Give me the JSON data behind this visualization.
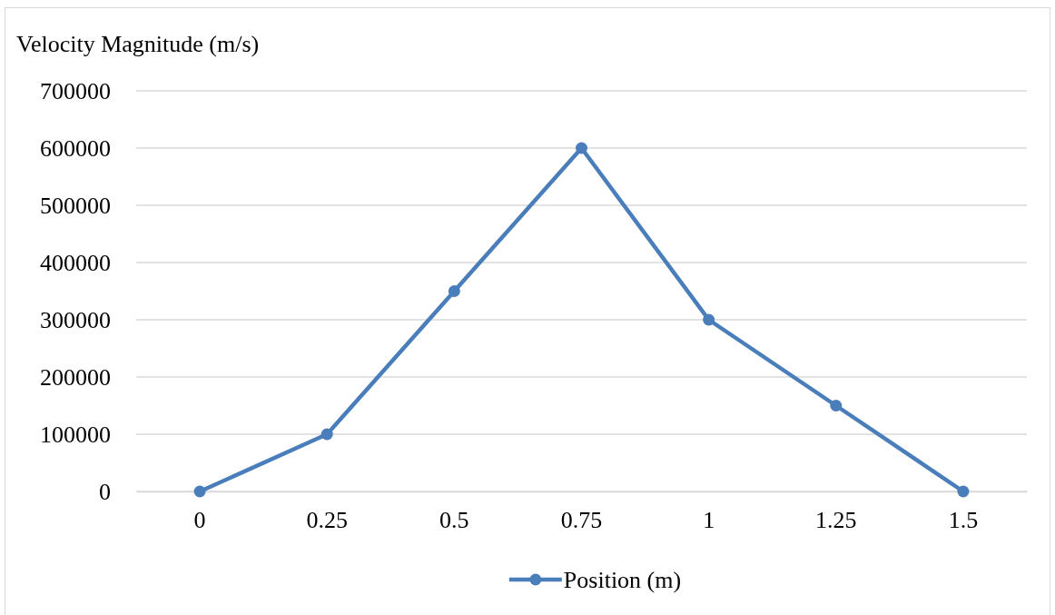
{
  "chart_data": {
    "type": "line",
    "ylabel": "Velocity Magnitude (m/s)",
    "categories": [
      "0",
      "0.25",
      "0.5",
      "0.75",
      "1",
      "1.25",
      "1.5"
    ],
    "series": [
      {
        "name": "Position (m)",
        "color": "#4a7ebb",
        "values": [
          0,
          100000,
          350000,
          600000,
          300000,
          150000,
          0
        ]
      }
    ],
    "ylim": [
      0,
      700000
    ],
    "yticks": [
      0,
      100000,
      200000,
      300000,
      400000,
      500000,
      600000,
      700000
    ],
    "grid": "y",
    "legend": "bottom",
    "marker": "circle",
    "line_style": "solid"
  }
}
